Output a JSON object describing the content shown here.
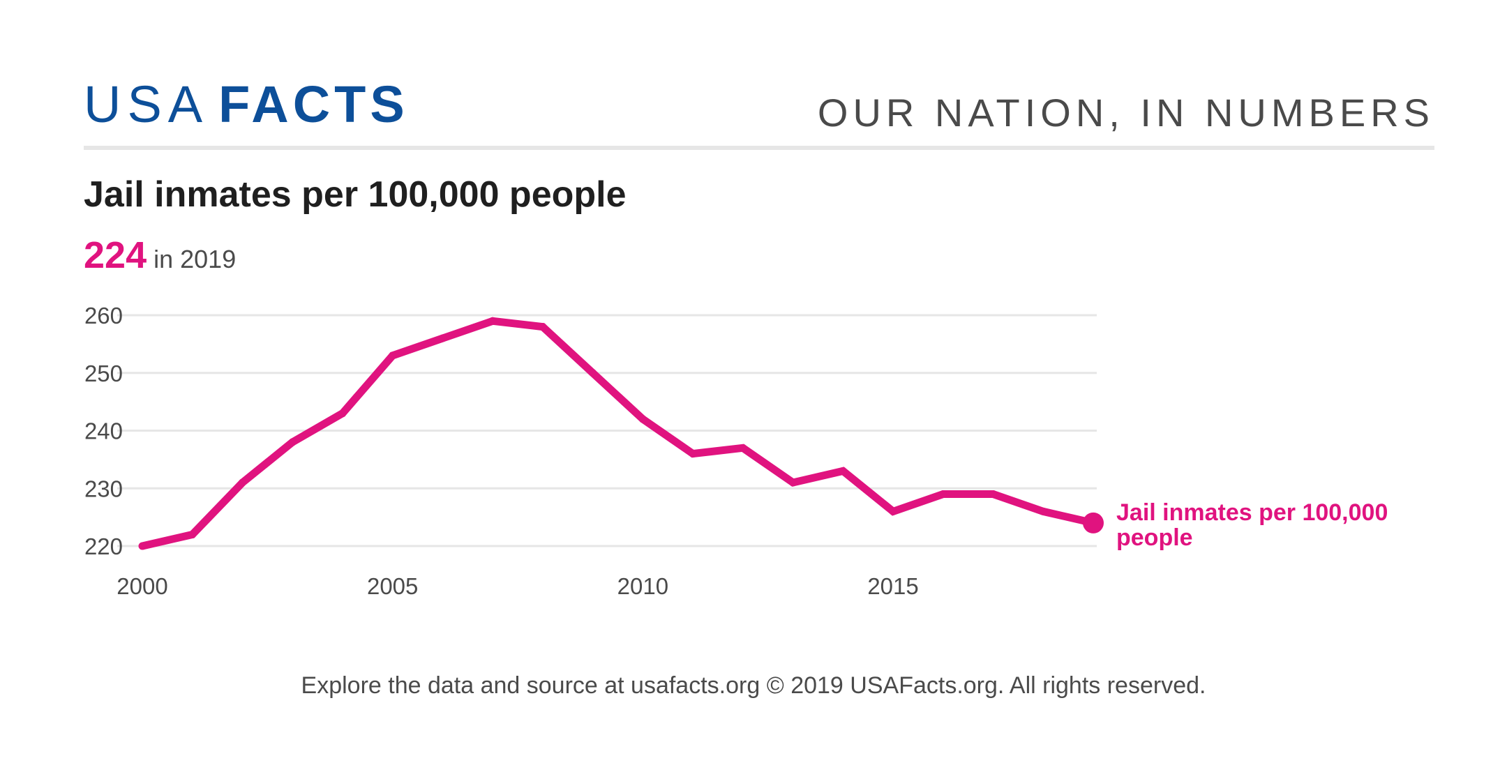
{
  "header": {
    "brand_light": "USA",
    "brand_bold": "FACTS",
    "tagline": "OUR NATION, IN NUMBERS"
  },
  "headline": {
    "value": "224",
    "period": "in 2019"
  },
  "footer": {
    "text": "Explore the data and source at usafacts.org © 2019 USAFacts.org. All rights reserved."
  },
  "colors": {
    "brand": "#0d4f99",
    "series": "#e0137f",
    "grid": "#e6e6e6",
    "text": "#4a4a4a"
  },
  "chart_data": {
    "type": "line",
    "title": "Jail inmates per 100,000 people",
    "xlabel": "",
    "ylabel": "",
    "x": [
      2000,
      2001,
      2002,
      2003,
      2004,
      2005,
      2006,
      2007,
      2008,
      2009,
      2010,
      2011,
      2012,
      2013,
      2014,
      2015,
      2016,
      2017,
      2018,
      2019
    ],
    "xlim": [
      2000,
      2019
    ],
    "ylim": [
      220,
      260
    ],
    "x_ticks": [
      "2000",
      "2005",
      "2010",
      "2015"
    ],
    "y_ticks": [
      "220",
      "230",
      "240",
      "250",
      "260"
    ],
    "grid": true,
    "legend": "none",
    "series": [
      {
        "name": "Jail inmates per 100,000 people",
        "label_lines": [
          "Jail inmates per 100,000",
          "people"
        ],
        "values": [
          220,
          222,
          231,
          238,
          243,
          253,
          256,
          259,
          258,
          250,
          242,
          236,
          237,
          231,
          233,
          226,
          229,
          229,
          226,
          224
        ]
      }
    ]
  }
}
